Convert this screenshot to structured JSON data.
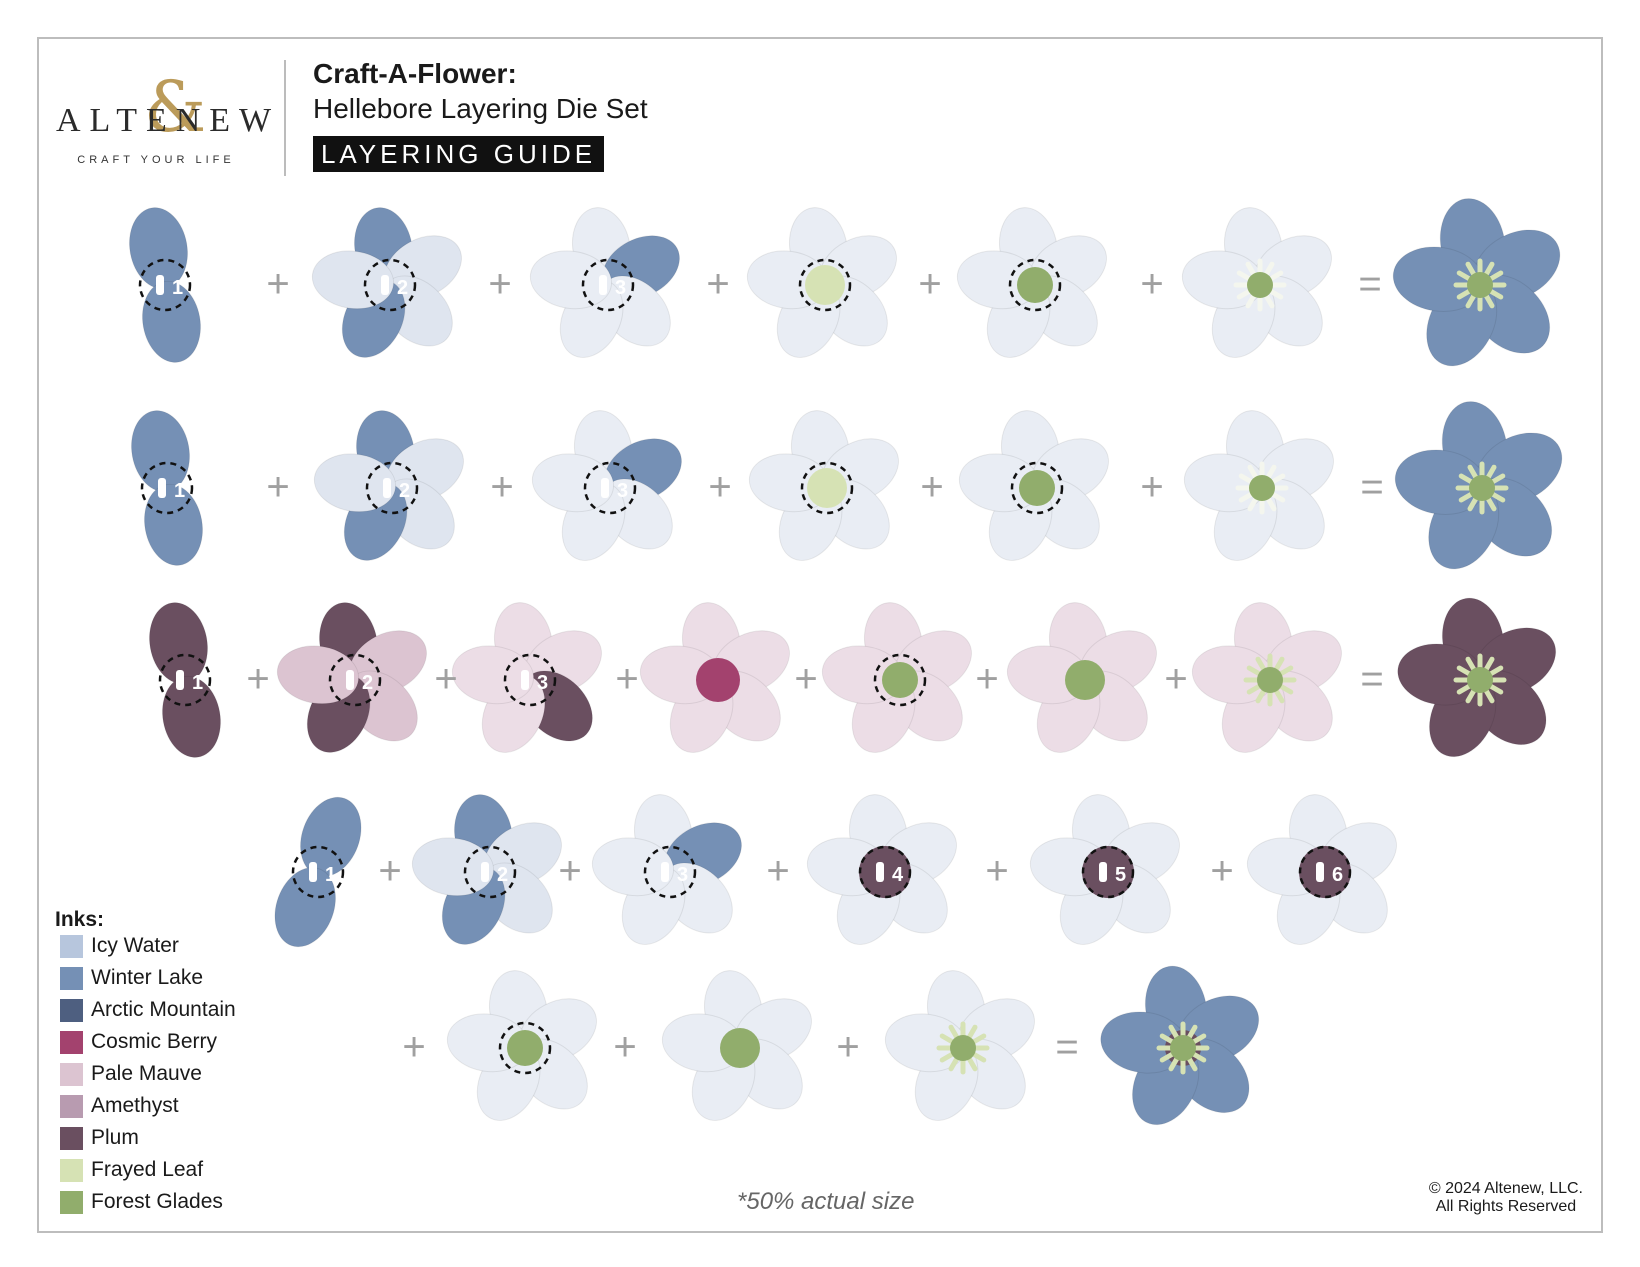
{
  "brand": {
    "name": "ALTENEW",
    "tagline": "CRAFT YOUR LIFE"
  },
  "header": {
    "title": "Craft-A-Flower:",
    "subtitle": "Hellebore Layering Die Set",
    "badge": "LAYERING GUIDE"
  },
  "inks": {
    "title": "Inks:",
    "items": [
      {
        "label": "Icy Water",
        "color": "#b7c6dd"
      },
      {
        "label": "Winter Lake",
        "color": "#7590b5"
      },
      {
        "label": "Arctic Mountain",
        "color": "#4e5f80"
      },
      {
        "label": "Cosmic Berry",
        "color": "#a3426e"
      },
      {
        "label": "Pale Mauve",
        "color": "#dcc4d1"
      },
      {
        "label": "Amethyst",
        "color": "#b89bb0"
      },
      {
        "label": "Plum",
        "color": "#6a4f60"
      },
      {
        "label": "Frayed Leaf",
        "color": "#d6e2b4"
      },
      {
        "label": "Forest Glades",
        "color": "#91ad6c"
      }
    ]
  },
  "rows": [
    {
      "steps": [
        "1",
        "2",
        "3",
        "",
        "",
        "",
        ""
      ],
      "operators": [
        "+",
        "+",
        "+",
        "+",
        "+",
        "="
      ]
    },
    {
      "steps": [
        "1",
        "2",
        "3",
        "",
        "",
        "",
        ""
      ],
      "operators": [
        "+",
        "+",
        "+",
        "+",
        "+",
        "="
      ]
    },
    {
      "steps": [
        "1",
        "2",
        "3",
        "",
        "",
        "",
        "",
        ""
      ],
      "operators": [
        "+",
        "+",
        "+",
        "+",
        "+",
        "+",
        "="
      ]
    },
    {
      "steps": [
        "1",
        "2",
        "3",
        "4",
        "5",
        "6"
      ],
      "operators": [
        "+",
        "+",
        "+",
        "+",
        "+"
      ]
    },
    {
      "steps": [
        "",
        "",
        "",
        ""
      ],
      "operators": [
        "+",
        "+",
        "+",
        "="
      ]
    }
  ],
  "footer": {
    "note": "*50% actual size",
    "copyright_line1": "© 2024 Altenew, LLC.",
    "copyright_line2": "All Rights Reserved"
  }
}
